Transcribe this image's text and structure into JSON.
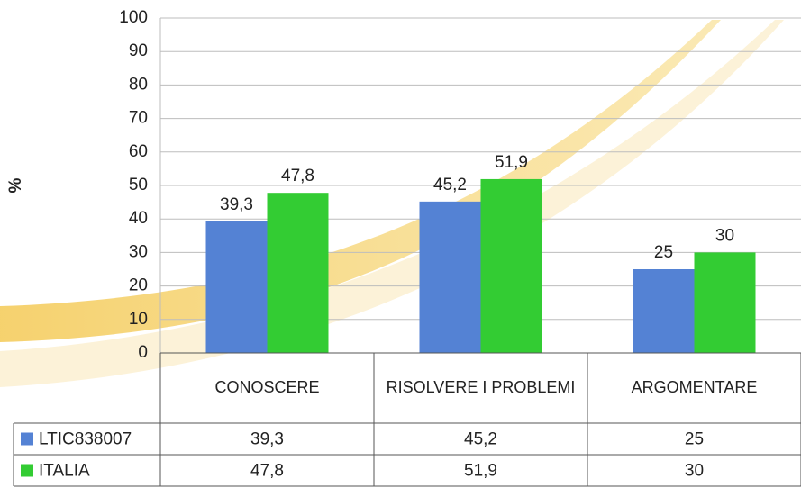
{
  "chart_data": {
    "type": "bar",
    "y_label": "%",
    "categories": [
      "CONOSCERE",
      "RISOLVERE I PROBLEMI",
      "ARGOMENTARE"
    ],
    "series": [
      {
        "name": "LTIC838007",
        "color": "#5482d4",
        "values": [
          39.3,
          45.2,
          25
        ],
        "value_labels": [
          "39,3",
          "45,2",
          "25"
        ]
      },
      {
        "name": "ITALIA",
        "color": "#33cc33",
        "values": [
          47.8,
          51.9,
          30
        ],
        "value_labels": [
          "47,8",
          "51,9",
          "30"
        ]
      }
    ],
    "ylim": [
      0,
      100
    ],
    "yticks": [
      0,
      10,
      20,
      30,
      40,
      50,
      60,
      70,
      80,
      90,
      100
    ],
    "grid": true,
    "data_table": true
  }
}
